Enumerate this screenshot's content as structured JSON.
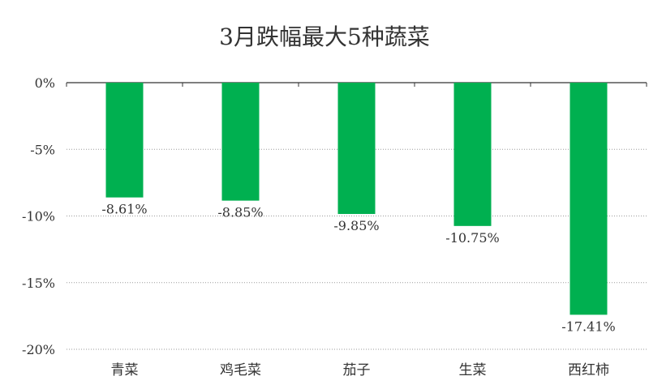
{
  "chart_data": {
    "type": "bar",
    "title": "3月跌幅最大5种蔬菜",
    "categories": [
      "青菜",
      "鸡毛菜",
      "茄子",
      "生菜",
      "西红柿"
    ],
    "values": [
      -8.61,
      -8.85,
      -9.85,
      -10.75,
      -17.41
    ],
    "data_labels": [
      "-8.61%",
      "-8.85%",
      "-9.85%",
      "-10.75%",
      "-17.41%"
    ],
    "y_ticks": [
      "0%",
      "-5%",
      "-10%",
      "-15%",
      "-20%"
    ],
    "y_tick_values": [
      0,
      -5,
      -10,
      -15,
      -20
    ],
    "ylim": [
      -20,
      0
    ],
    "grid": true,
    "legend": "none",
    "bar_color": "#00b050"
  }
}
